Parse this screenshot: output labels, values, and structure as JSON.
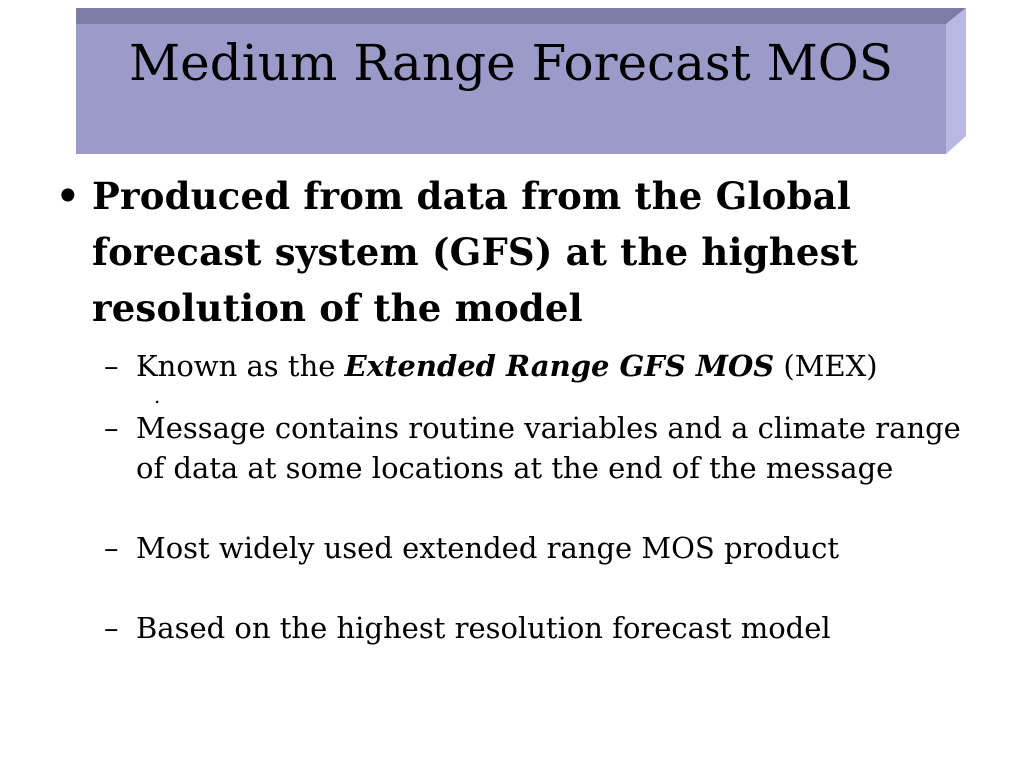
{
  "title": "Medium Range Forecast MOS",
  "colors": {
    "title_face": "#9b9ac8",
    "title_top_bevel": "#7c7ca6",
    "title_side_bevel": "#b8b8e2",
    "title_text": "#000000"
  },
  "main_bullet": {
    "marker": "•",
    "text": "Produced from data from the Global forecast system (GFS) at the highest resolution of the model"
  },
  "sub_bullets": [
    {
      "marker": "–",
      "prefix": "Known as the ",
      "emphasis": "Extended Range GFS MOS",
      "suffix": " (MEX)"
    },
    {
      "marker": "–",
      "text": "Message contains routine variables and a climate range of data at some locations at the end of the message"
    },
    {
      "marker": "–",
      "text": "Most widely used extended range MOS product"
    },
    {
      "marker": "–",
      "text": "Based on the highest resolution forecast model"
    }
  ],
  "stray_mark": "."
}
